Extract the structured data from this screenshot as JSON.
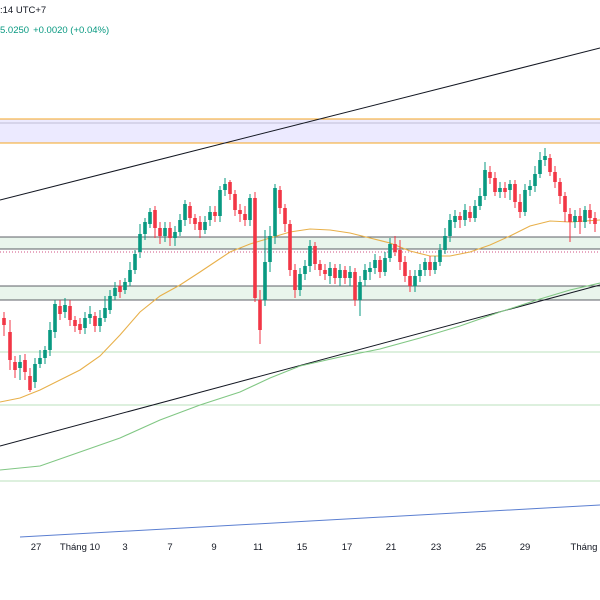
{
  "header": {
    "time_suffix": ":14 UTC+7",
    "price_last": "5.0250",
    "price_change": "+0.0020 (+0.04%)"
  },
  "colors": {
    "up": "#089981",
    "down": "#f23645",
    "ma_short": "#e8b04a",
    "ma_long": "#81c784",
    "zone_fill": "#e9f5ec",
    "top_band": "#eceaff",
    "orange_line": "#f5a623",
    "trend_line": "#131722",
    "blue_line": "#5b7fd1"
  },
  "x_axis": {
    "ticks": [
      "27",
      "Tháng 10",
      "3",
      "7",
      "9",
      "11",
      "15",
      "17",
      "21",
      "23",
      "25",
      "29",
      "Tháng"
    ]
  },
  "chart_data": {
    "type": "candlestick",
    "overlays": [
      "moving-average-short",
      "moving-average-long",
      "trend-channel",
      "horizontal-levels",
      "support-resistance-zones"
    ],
    "x_ticks": [
      "27",
      "Tháng 10",
      "3",
      "7",
      "9",
      "11",
      "15",
      "17",
      "21",
      "23",
      "25",
      "29",
      "Tháng"
    ],
    "grid": false
  }
}
